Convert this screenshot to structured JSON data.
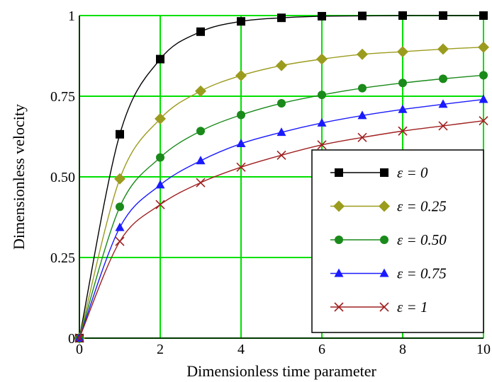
{
  "chart_data": {
    "type": "line",
    "title": "",
    "xlabel": "Dimensionless time parameter",
    "ylabel": "Dimensionless velocity",
    "xlim": [
      0,
      10
    ],
    "ylim": [
      0,
      1
    ],
    "grid": true,
    "grid_color": "#00e000",
    "x_ticks": [
      "0",
      "2",
      "4",
      "6",
      "8",
      "10"
    ],
    "y_ticks": [
      "0",
      "0.25",
      "0.50",
      "0.75",
      "1"
    ],
    "legend_position": "bottom-right",
    "x": [
      0,
      1,
      2,
      3,
      4,
      5,
      6,
      7,
      8,
      9,
      10
    ],
    "series": [
      {
        "name": "ε = 0",
        "marker": "square",
        "color": "#000000",
        "values": [
          0,
          0.632,
          0.865,
          0.95,
          0.982,
          0.993,
          0.998,
          0.999,
          1.0,
          1.0,
          1.0
        ]
      },
      {
        "name": "ε = 0.25",
        "marker": "diamond",
        "color": "#9b9b1e",
        "values": [
          0,
          0.494,
          0.68,
          0.766,
          0.814,
          0.845,
          0.865,
          0.88,
          0.888,
          0.896,
          0.902
        ]
      },
      {
        "name": "ε = 0.50",
        "marker": "circle",
        "color": "#1a8a1a",
        "values": [
          0,
          0.407,
          0.56,
          0.642,
          0.692,
          0.728,
          0.754,
          0.775,
          0.791,
          0.804,
          0.815
        ]
      },
      {
        "name": "ε = 0.75",
        "marker": "triangle",
        "color": "#1a1aff",
        "values": [
          0,
          0.343,
          0.475,
          0.55,
          0.603,
          0.638,
          0.667,
          0.69,
          0.709,
          0.725,
          0.74
        ]
      },
      {
        "name": "ε = 1",
        "marker": "x",
        "color": "#a02020",
        "values": [
          0,
          0.3,
          0.414,
          0.482,
          0.53,
          0.567,
          0.599,
          0.622,
          0.642,
          0.658,
          0.674
        ]
      }
    ]
  }
}
